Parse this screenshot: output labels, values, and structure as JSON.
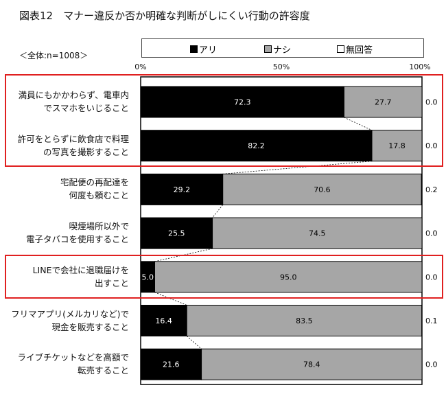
{
  "chart_data": {
    "type": "bar",
    "stacked": true,
    "orientation": "horizontal",
    "title": "図表12　マナー違反か否か明確な判断がしにくい行動の許容度",
    "subtitle": "＜全体:n=1008＞",
    "xlim": [
      0,
      100
    ],
    "xticks": [
      "0%",
      "50%",
      "100%"
    ],
    "legend": {
      "placement": "top",
      "entries": [
        {
          "label": "アリ",
          "color": "#000000"
        },
        {
          "label": "ナシ",
          "color": "#a6a6a6"
        },
        {
          "label": "無回答",
          "color": "#ffffff"
        }
      ]
    },
    "categories": [
      [
        "満員にもかかわらず、電車内",
        "でスマホをいじること"
      ],
      [
        "許可をとらずに飲食店で料理",
        "の写真を撮影すること"
      ],
      [
        "宅配便の再配達を",
        "何度も頼むこと"
      ],
      [
        "喫煙場所以外で",
        "電子タバコを使用すること"
      ],
      [
        "LINEで会社に退職届けを",
        "出すこと"
      ],
      [
        "フリマアプリ(メルカリなど)で",
        "現金を販売すること"
      ],
      [
        "ライブチケットなどを高額で",
        "転売すること"
      ]
    ],
    "series": [
      {
        "name": "アリ",
        "values": [
          72.3,
          82.2,
          29.2,
          25.5,
          5.0,
          16.4,
          21.6
        ]
      },
      {
        "name": "ナシ",
        "values": [
          27.7,
          17.8,
          70.6,
          74.5,
          95.0,
          83.5,
          78.4
        ]
      },
      {
        "name": "無回答",
        "values": [
          0.0,
          0.0,
          0.2,
          0.0,
          0.0,
          0.1,
          0.0
        ]
      }
    ],
    "highlighted": [
      [
        0,
        1
      ],
      [
        4
      ]
    ]
  }
}
